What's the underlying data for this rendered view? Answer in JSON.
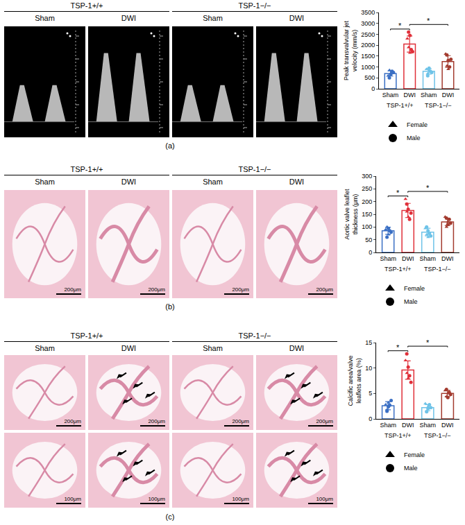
{
  "image_groups": [
    {
      "label": "TSP-1+/+",
      "columns": [
        "Sham",
        "DWI"
      ]
    },
    {
      "label": "TSP-1−/−",
      "columns": [
        "Sham",
        "DWI"
      ]
    }
  ],
  "panels": [
    {
      "letter": "(a)",
      "scale_bars": []
    },
    {
      "letter": "(b)",
      "scale_bars": [
        "200μm"
      ]
    },
    {
      "letter": "(c)",
      "scale_bars": [
        "200μm",
        "100μm"
      ]
    }
  ],
  "chart_data": [
    {
      "type": "bar",
      "ylabel": "Peak transvalvular jet velocity (mm/s)",
      "categories": [
        "Sham",
        "DWI",
        "Sham",
        "DWI"
      ],
      "groups": [
        {
          "label": "TSP-1+/+",
          "span": [
            0,
            1
          ]
        },
        {
          "label": "TSP-1−/−",
          "span": [
            2,
            3
          ]
        }
      ],
      "values": [
        700,
        2050,
        800,
        1250
      ],
      "errors": [
        120,
        370,
        125,
        270
      ],
      "colors": [
        "#3a6fc4",
        "#e0303a",
        "#6ec3e8",
        "#a33b2f"
      ],
      "series": [
        {
          "name": "Female",
          "marker": "triangle",
          "values": [
            [
              600,
              850,
              700
            ],
            [
              2300,
              1900,
              1650
            ],
            [
              900,
              700,
              850
            ],
            [
              1600,
              1050,
              900
            ]
          ]
        },
        {
          "name": "Male",
          "marker": "circle",
          "values": [
            [
              500,
              650,
              800,
              750
            ],
            [
              2600,
              2450,
              1800,
              1700
            ],
            [
              600,
              950,
              800,
              750
            ],
            [
              1550,
              1300,
              1000,
              1350
            ]
          ]
        }
      ],
      "significance": [
        {
          "pair": [
            0,
            1
          ],
          "label": "*"
        },
        {
          "pair": [
            1,
            3
          ],
          "label": "*"
        }
      ],
      "ylim": [
        0,
        3500
      ],
      "yticks": [
        0,
        500,
        1000,
        1500,
        2000,
        2500,
        3000,
        3500
      ],
      "grid": false,
      "legend": "bottom"
    },
    {
      "type": "bar",
      "ylabel": "Aortic valve leaflet thickness (μm)",
      "categories": [
        "Sham",
        "DWI",
        "Sham",
        "DWI"
      ],
      "groups": [
        {
          "label": "TSP-1+/+",
          "span": [
            0,
            1
          ]
        },
        {
          "label": "TSP-1−/−",
          "span": [
            2,
            3
          ]
        }
      ],
      "values": [
        85,
        165,
        80,
        120
      ],
      "errors": [
        14,
        28,
        15,
        14
      ],
      "colors": [
        "#3a6fc4",
        "#e0303a",
        "#6ec3e8",
        "#a33b2f"
      ],
      "series": [
        {
          "name": "Female",
          "marker": "triangle",
          "values": [
            [
              90,
              100,
              70
            ],
            [
              210,
              160,
              140
            ],
            [
              95,
              70,
              60
            ],
            [
              140,
              100,
              120
            ]
          ]
        },
        {
          "name": "Male",
          "marker": "circle",
          "values": [
            [
              60,
              95,
              85,
              80
            ],
            [
              190,
              170,
              130,
              155
            ],
            [
              100,
              85,
              75,
              65
            ],
            [
              135,
              110,
              130,
              115
            ]
          ]
        }
      ],
      "significance": [
        {
          "pair": [
            0,
            1
          ],
          "label": "*"
        },
        {
          "pair": [
            1,
            3
          ],
          "label": "*"
        }
      ],
      "ylim": [
        0,
        300
      ],
      "yticks": [
        0,
        50,
        100,
        150,
        200,
        250,
        300
      ],
      "grid": false,
      "legend": "bottom"
    },
    {
      "type": "bar",
      "ylabel": "Calcific area/valve leaflets area (%)",
      "categories": [
        "Sham",
        "DWI",
        "Sham",
        "DWI"
      ],
      "groups": [
        {
          "label": "TSP-1+/+",
          "span": [
            0,
            1
          ]
        },
        {
          "label": "TSP-1−/−",
          "span": [
            2,
            3
          ]
        }
      ],
      "values": [
        2.6,
        9.6,
        2.2,
        5.0
      ],
      "errors": [
        0.8,
        1.8,
        0.6,
        0.6
      ],
      "colors": [
        "#3a6fc4",
        "#e0303a",
        "#6ec3e8",
        "#a33b2f"
      ],
      "series": [
        {
          "name": "Female",
          "marker": "triangle",
          "values": [
            [
              2.8,
              1.8,
              3.2
            ],
            [
              11.5,
              9,
              8
            ],
            [
              3.0,
              1.5,
              2.4
            ],
            [
              5.6,
              4.4,
              5.0
            ]
          ]
        },
        {
          "name": "Male",
          "marker": "circle",
          "values": [
            [
              1.5,
              2.4,
              2.7,
              3.6
            ],
            [
              12.8,
              10.2,
              8.5,
              7.2
            ],
            [
              1.4,
              2.0,
              2.8,
              2.2
            ],
            [
              5.8,
              4.2,
              5.2,
              4.8
            ]
          ]
        }
      ],
      "significance": [
        {
          "pair": [
            0,
            1
          ],
          "label": "*"
        },
        {
          "pair": [
            1,
            3
          ],
          "label": "*"
        }
      ],
      "ylim": [
        0,
        15
      ],
      "yticks": [
        0,
        5,
        10,
        15
      ],
      "grid": false,
      "legend": "bottom"
    }
  ]
}
